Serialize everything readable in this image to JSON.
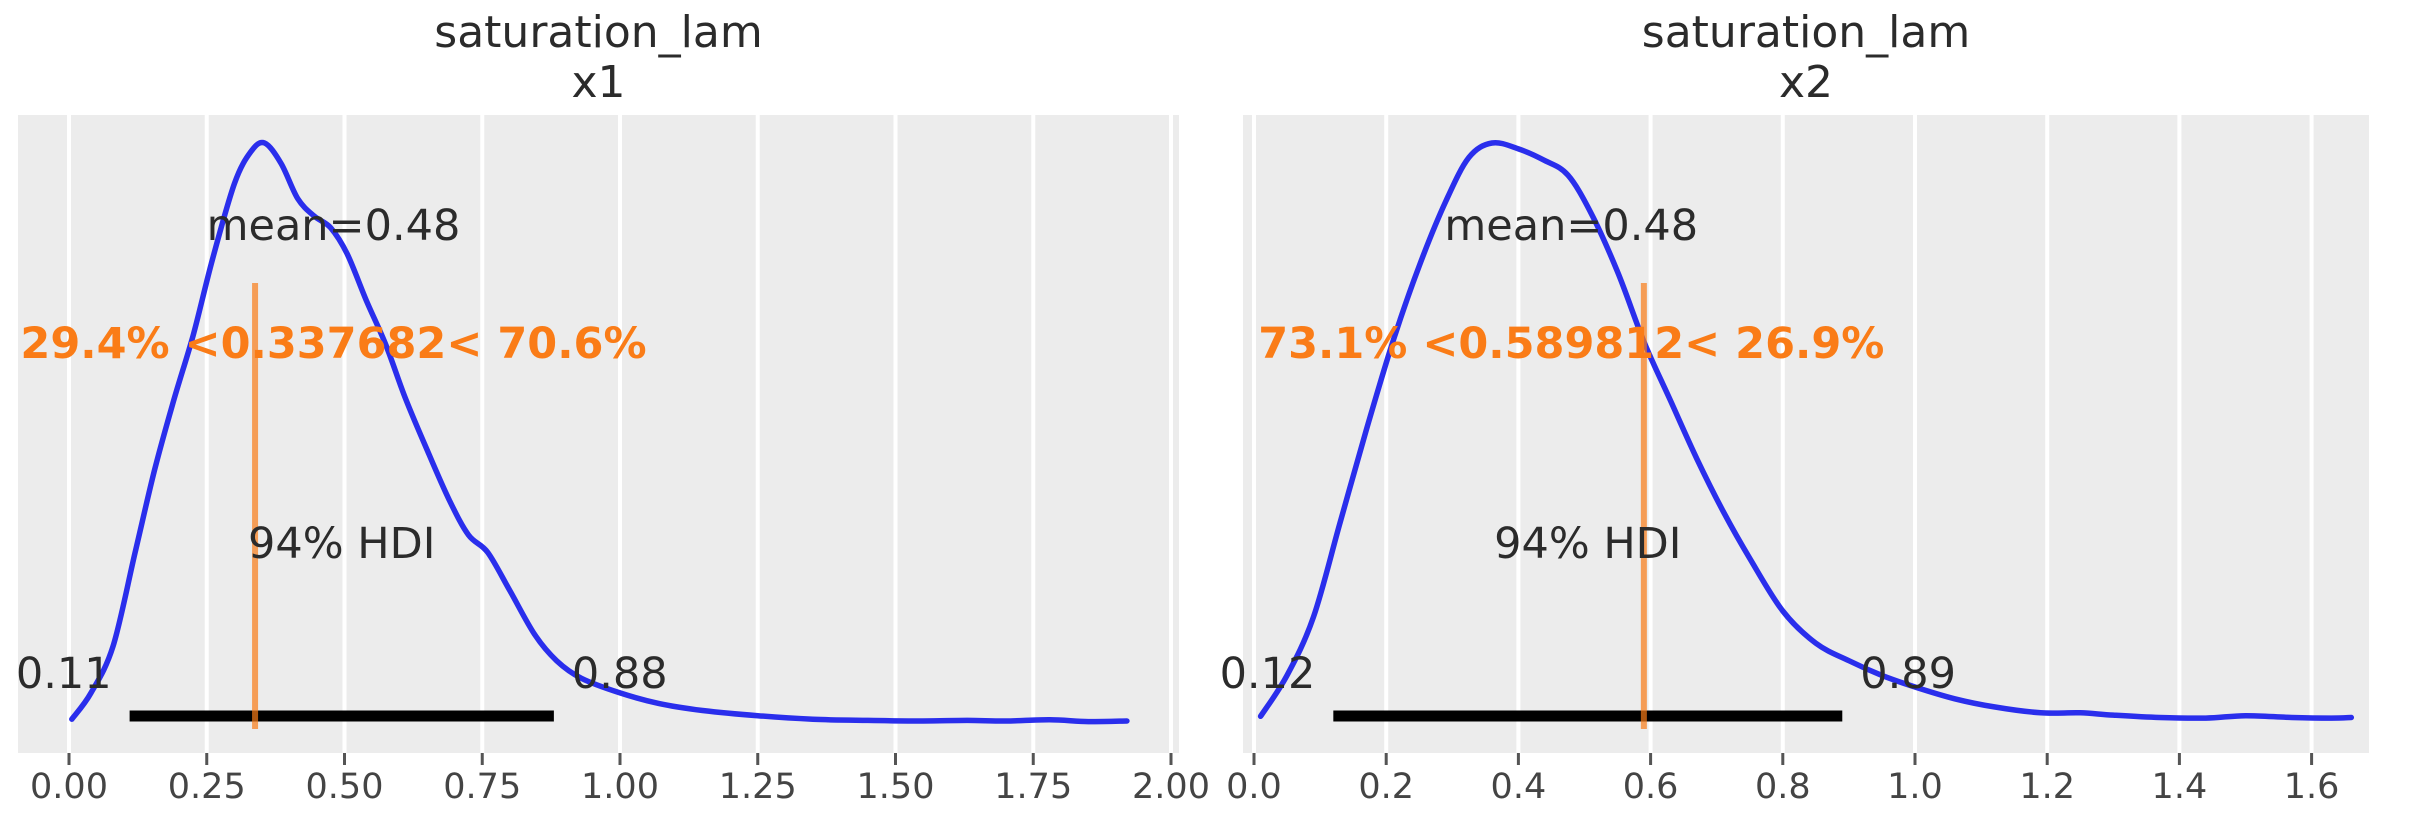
{
  "style": {
    "figure_bg": "#ffffff",
    "panel_bg": "#ececec",
    "grid_color": "#ffffff",
    "curve_color": "#2a2eec",
    "ref_line_color": "#fa7c17",
    "ref_text_color": "#fa7c17",
    "hdi_bar_color": "#000000",
    "text_color": "#2b2b2b",
    "tick_text_color": "#444444",
    "tick_mark_color": "#555555"
  },
  "chart_data": [
    {
      "type": "area",
      "title": "saturation_lam",
      "subtitle": "x1",
      "mean_label": "mean=0.48",
      "mean_value": 0.48,
      "ref_label": "29.4% <0.337682< 70.6%",
      "ref_value": 0.337682,
      "hdi_text": "94% HDI",
      "hdi_probability": "94%",
      "hdi_interval": [
        0.11,
        0.88
      ],
      "hdi_low_label": "0.11",
      "hdi_high_label": "0.88",
      "xlim": [
        -0.09,
        2.02
      ],
      "grid": true,
      "x_ticks": [
        0,
        0.25,
        0.5,
        0.75,
        1.0,
        1.25,
        1.5,
        1.75,
        2.0
      ],
      "x_tick_labels": [
        "0.00",
        "0.25",
        "0.50",
        "0.75",
        "1.00",
        "1.25",
        "1.50",
        "1.75",
        "2.00"
      ],
      "curve": {
        "x": [
          0.005,
          0.04,
          0.08,
          0.12,
          0.155,
          0.19,
          0.225,
          0.26,
          0.3,
          0.33,
          0.355,
          0.385,
          0.415,
          0.445,
          0.475,
          0.505,
          0.54,
          0.575,
          0.61,
          0.65,
          0.69,
          0.725,
          0.76,
          0.8,
          0.845,
          0.885,
          0.93,
          1.0,
          1.07,
          1.15,
          1.25,
          1.35,
          1.45,
          1.55,
          1.63,
          1.7,
          1.78,
          1.85,
          1.92
        ],
        "density_frac": [
          0.015,
          0.06,
          0.14,
          0.3,
          0.44,
          0.56,
          0.67,
          0.8,
          0.93,
          0.985,
          1.0,
          0.965,
          0.905,
          0.875,
          0.855,
          0.81,
          0.73,
          0.655,
          0.565,
          0.475,
          0.39,
          0.33,
          0.3,
          0.235,
          0.16,
          0.115,
          0.085,
          0.06,
          0.042,
          0.03,
          0.021,
          0.015,
          0.013,
          0.012,
          0.013,
          0.012,
          0.014,
          0.011,
          0.012
        ]
      }
    },
    {
      "type": "area",
      "title": "saturation_lam",
      "subtitle": "x2",
      "mean_label": "mean=0.48",
      "mean_value": 0.48,
      "ref_label": "73.1% <0.589812< 26.9%",
      "ref_value": 0.589812,
      "hdi_text": "94% HDI",
      "hdi_probability": "94%",
      "hdi_interval": [
        0.12,
        0.89
      ],
      "hdi_low_label": "0.12",
      "hdi_high_label": "0.89",
      "xlim": [
        -0.02,
        1.69
      ],
      "grid": true,
      "x_ticks": [
        0,
        0.2,
        0.4,
        0.6,
        0.8,
        1.0,
        1.2,
        1.4,
        1.6
      ],
      "x_tick_labels": [
        "0.0",
        "0.2",
        "0.4",
        "0.6",
        "0.8",
        "1.0",
        "1.2",
        "1.4",
        "1.6"
      ],
      "curve": {
        "x": [
          0.01,
          0.05,
          0.09,
          0.13,
          0.17,
          0.21,
          0.25,
          0.29,
          0.325,
          0.36,
          0.4,
          0.44,
          0.475,
          0.51,
          0.55,
          0.59,
          0.63,
          0.67,
          0.71,
          0.75,
          0.8,
          0.85,
          0.9,
          0.95,
          1.0,
          1.06,
          1.12,
          1.19,
          1.25,
          1.3,
          1.37,
          1.44,
          1.5,
          1.57,
          1.63,
          1.66
        ],
        "density_frac": [
          0.02,
          0.09,
          0.19,
          0.35,
          0.51,
          0.66,
          0.79,
          0.9,
          0.975,
          1.0,
          0.99,
          0.97,
          0.945,
          0.88,
          0.78,
          0.66,
          0.56,
          0.46,
          0.37,
          0.29,
          0.2,
          0.145,
          0.115,
          0.09,
          0.07,
          0.05,
          0.036,
          0.026,
          0.026,
          0.022,
          0.018,
          0.017,
          0.021,
          0.018,
          0.017,
          0.018
        ]
      }
    }
  ]
}
